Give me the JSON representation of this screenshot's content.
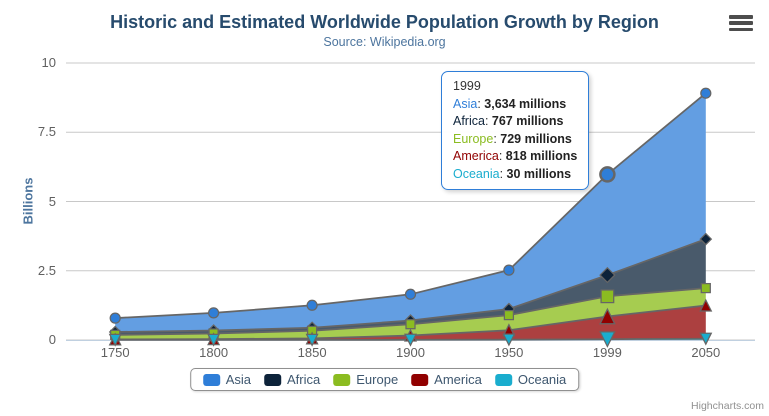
{
  "title": "Historic and Estimated Worldwide Population Growth by Region",
  "subtitle": "Source: Wikipedia.org",
  "credits": "Highcharts.com",
  "chart_data": {
    "type": "area",
    "stacking": "normal",
    "title": "Historic and Estimated Worldwide Population Growth by Region",
    "subtitle": "Source: Wikipedia.org",
    "categories": [
      "1750",
      "1800",
      "1850",
      "1900",
      "1950",
      "1999",
      "2050"
    ],
    "series": [
      {
        "name": "Asia",
        "color": "#2f7ed8",
        "fill": "#639EE2",
        "marker": "circle",
        "values": [
          502,
          635,
          809,
          947,
          1402,
          3634,
          5268
        ]
      },
      {
        "name": "Africa",
        "color": "#0d233a",
        "fill": "#495A6B",
        "marker": "diamond",
        "values": [
          106,
          107,
          111,
          133,
          221,
          767,
          1766
        ]
      },
      {
        "name": "Europe",
        "color": "#8bbc21",
        "fill": "#A6CC50",
        "marker": "square",
        "values": [
          163,
          203,
          276,
          408,
          547,
          729,
          628
        ]
      },
      {
        "name": "America",
        "color": "#910000",
        "fill": "#AC4040",
        "marker": "triangle",
        "values": [
          18,
          31,
          54,
          156,
          339,
          818,
          1201
        ]
      },
      {
        "name": "Oceania",
        "color": "#1aadce",
        "fill": "#53C2DA",
        "marker": "triangle-down",
        "values": [
          2,
          2,
          2,
          6,
          13,
          30,
          46
        ]
      }
    ],
    "values_unit": "millions",
    "xlabel": "",
    "ylabel": "Billions",
    "ylim": [
      0,
      10
    ],
    "yticks": [
      "0",
      "2.5",
      "5",
      "7.5",
      "10"
    ],
    "grid": true,
    "grid_color": "#C8C8C8",
    "axis_line_color": "#C0D0E0",
    "series_line_color": "#666666",
    "legend_position": "bottom",
    "hover_category": "1999"
  },
  "tooltip": {
    "header": "1999",
    "border_color": "#2f7ed8",
    "rows": [
      {
        "name": "Asia",
        "value": "3,634 millions"
      },
      {
        "name": "Africa",
        "value": "767 millions"
      },
      {
        "name": "Europe",
        "value": "729 millions"
      },
      {
        "name": "America",
        "value": "818 millions"
      },
      {
        "name": "Oceania",
        "value": "30 millions"
      }
    ]
  }
}
